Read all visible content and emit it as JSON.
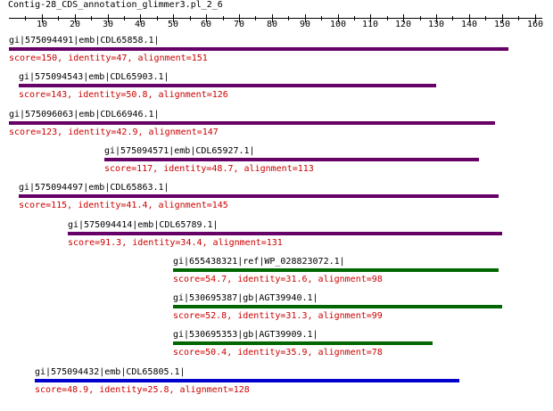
{
  "title": "Contig-28_CDS_annotation_glimmer3.pl_2_6",
  "axis": {
    "min": 0,
    "max": 162,
    "ticks": [
      10,
      20,
      30,
      40,
      50,
      60,
      70,
      80,
      90,
      100,
      110,
      120,
      130,
      140,
      150,
      160
    ]
  },
  "colors": {
    "purple": "#660066",
    "green": "#006600",
    "blue": "#0000cc",
    "stats": "#cc0000"
  },
  "hits": [
    {
      "label": "gi|575094491|emb|CDL65858.1|",
      "start": 1,
      "end": 152,
      "color": "purple",
      "stats": "score=150, identity=47, alignment=151"
    },
    {
      "label": "gi|575094543|emb|CDL65903.1|",
      "start": 4,
      "end": 130,
      "color": "purple",
      "stats": "score=143, identity=50.8, alignment=126"
    },
    {
      "label": "gi|575096063|emb|CDL66946.1|",
      "start": 1,
      "end": 148,
      "color": "purple",
      "stats": "score=123, identity=42.9, alignment=147"
    },
    {
      "label": "gi|575094571|emb|CDL65927.1|",
      "start": 30,
      "end": 143,
      "color": "purple",
      "stats": "score=117, identity=48.7, alignment=113"
    },
    {
      "label": "gi|575094497|emb|CDL65863.1|",
      "start": 4,
      "end": 149,
      "color": "purple",
      "stats": "score=115, identity=41.4, alignment=145"
    },
    {
      "label": "gi|575094414|emb|CDL65789.1|",
      "start": 19,
      "end": 150,
      "color": "purple",
      "stats": "score=91.3, identity=34.4, alignment=131"
    },
    {
      "label": "gi|655438321|ref|WP_028823072.1|",
      "start": 51,
      "end": 149,
      "color": "green",
      "stats": "score=54.7, identity=31.6, alignment=98"
    },
    {
      "label": "gi|530695387|gb|AGT39940.1|",
      "start": 51,
      "end": 150,
      "color": "green",
      "stats": "score=52.8, identity=31.3, alignment=99"
    },
    {
      "label": "gi|530695353|gb|AGT39909.1|",
      "start": 51,
      "end": 129,
      "color": "green",
      "stats": "score=50.4, identity=35.9, alignment=78"
    },
    {
      "label": "gi|575094432|emb|CDL65805.1|",
      "start": 9,
      "end": 137,
      "color": "blue",
      "stats": "score=48.9, identity=25.8, alignment=128"
    }
  ]
}
